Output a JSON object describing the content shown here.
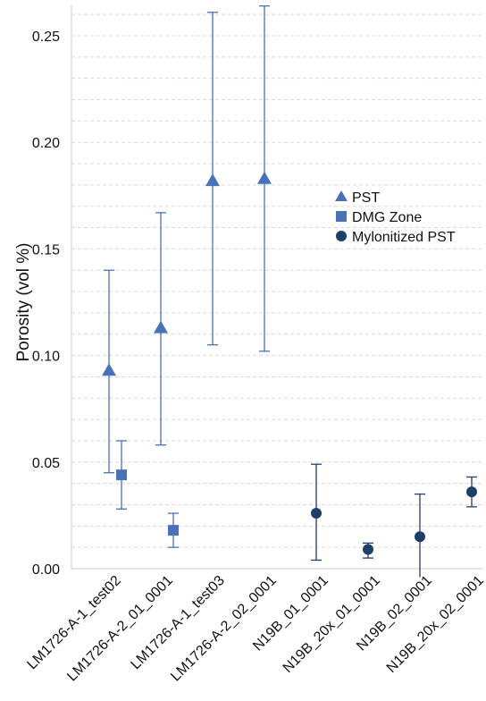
{
  "chart_data": {
    "type": "scatter",
    "ylabel": "Porosity (vol %)",
    "xlabel": "",
    "ylim": [
      0,
      0.26
    ],
    "yticks": [
      0.0,
      0.05,
      0.1,
      0.15,
      0.2,
      0.25
    ],
    "ytick_labels": [
      "0.00",
      "0.05",
      "0.10",
      "0.15",
      "0.20",
      "0.25"
    ],
    "grid": true,
    "legend_position": "right-center",
    "categories": [
      "LM1726-A-1_test02",
      "LM1726-A-2_01_0001",
      "LM1726-A-1_test03",
      "LM1726-A-2_02_0001",
      "N19B_01_0001",
      "N19B_20x_01_0001",
      "N19B_02_0001",
      "N19B_20x_02_0001"
    ],
    "series": [
      {
        "name": "PST",
        "marker": "triangle",
        "color": "#4a72b8",
        "points": [
          {
            "category": "LM1726-A-1_test02",
            "y": 0.093,
            "low": 0.045,
            "high": 0.14
          },
          {
            "category": "LM1726-A-2_01_0001",
            "y": 0.113,
            "low": 0.058,
            "high": 0.167
          },
          {
            "category": "LM1726-A-1_test03",
            "y": 0.182,
            "low": 0.105,
            "high": 0.261
          },
          {
            "category": "LM1726-A-2_02_0001",
            "y": 0.183,
            "low": 0.102,
            "high": 0.264
          }
        ]
      },
      {
        "name": "DMG Zone",
        "marker": "square",
        "color": "#4a72b8",
        "points": [
          {
            "category": "LM1726-A-1_test02",
            "y": 0.044,
            "low": 0.028,
            "high": 0.06
          },
          {
            "category": "LM1726-A-2_01_0001",
            "y": 0.018,
            "low": 0.01,
            "high": 0.026
          }
        ]
      },
      {
        "name": "Mylonitized PST",
        "marker": "circle",
        "color": "#1f3f6b",
        "points": [
          {
            "category": "N19B_01_0001",
            "y": 0.026,
            "low": 0.004,
            "high": 0.049
          },
          {
            "category": "N19B_20x_01_0001",
            "y": 0.009,
            "low": 0.005,
            "high": 0.012
          },
          {
            "category": "N19B_02_0001",
            "y": 0.015,
            "low": -0.004,
            "high": 0.035
          },
          {
            "category": "N19B_20x_02_0001",
            "y": 0.036,
            "low": 0.029,
            "high": 0.043
          }
        ]
      }
    ]
  }
}
